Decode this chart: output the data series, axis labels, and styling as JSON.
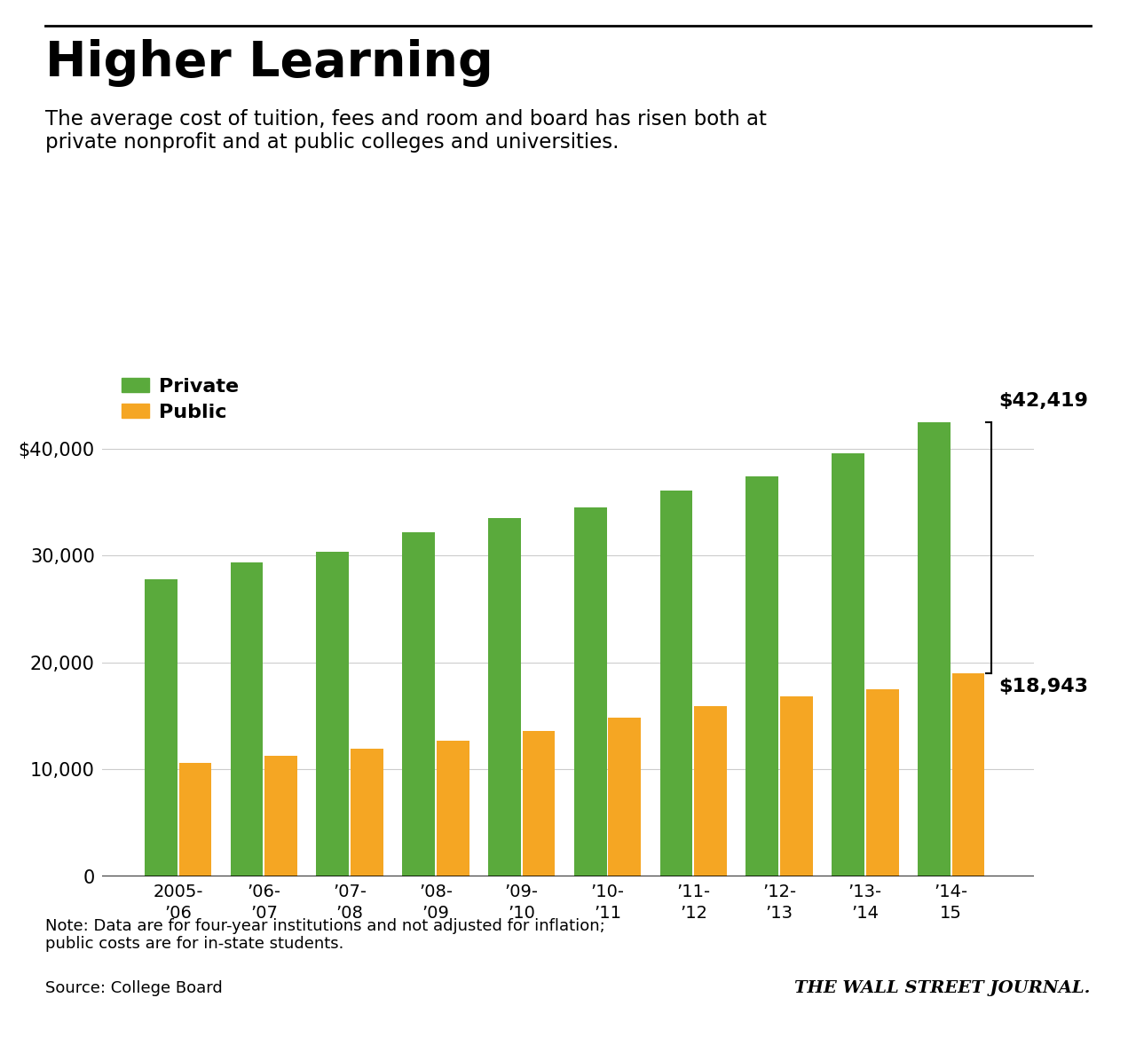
{
  "title": "Higher Learning",
  "subtitle": "The average cost of tuition, fees and room and board has risen both at\nprivate nonprofit and at public colleges and universities.",
  "categories": [
    "2005-\n’06",
    "’06-\n’07",
    "’07-\n’08",
    "’08-\n’09",
    "’09-\n’10",
    "’10-\n’11",
    "’11-\n’12",
    "’12-\n’13",
    "’13-\n’14",
    "’14-\n15"
  ],
  "private_values": [
    27757,
    29326,
    30367,
    32184,
    33465,
    34457,
    36034,
    37390,
    39518,
    42419
  ],
  "public_values": [
    10636,
    11254,
    11892,
    12686,
    13564,
    14799,
    15918,
    16789,
    17474,
    18943
  ],
  "private_color": "#5aaa3c",
  "public_color": "#f5a623",
  "bar_width": 0.38,
  "ylim": [
    0,
    48000
  ],
  "yticks": [
    0,
    10000,
    20000,
    30000,
    40000
  ],
  "note": "Note: Data are for four-year institutions and not adjusted for inflation;\npublic costs are for in-state students.",
  "source": "Source: College Board",
  "watermark": "THE WALL STREET JOURNAL.",
  "last_private_label": "$42,419",
  "last_public_label": "$18,943",
  "background_color": "#ffffff",
  "grid_color": "#cccccc",
  "top_border_color": "#000000"
}
